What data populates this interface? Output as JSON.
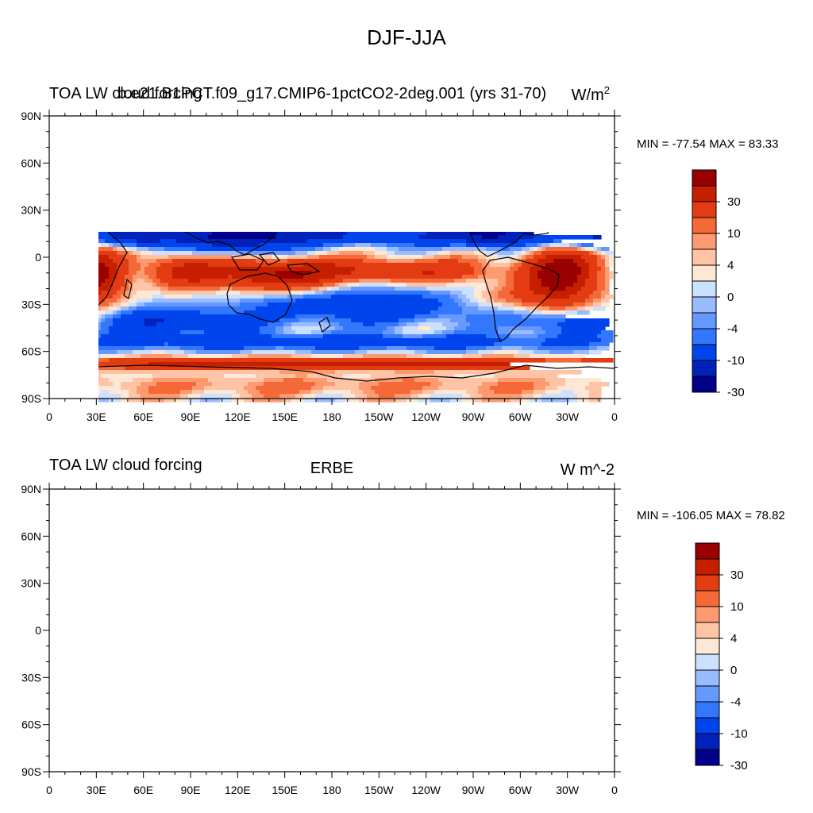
{
  "page": {
    "title": "DJF-JJA"
  },
  "colors": {
    "scale": [
      "#000088",
      "#0022bb",
      "#0044ee",
      "#3377ff",
      "#6699ff",
      "#99bbff",
      "#cce0ff",
      "#ffffff",
      "#fde8d6",
      "#ffc4a6",
      "#fd9a70",
      "#f56938",
      "#e33c12",
      "#c51f00",
      "#990000"
    ],
    "land_outline": "#000000",
    "missing": "#ffffff"
  },
  "axes": {
    "lat_labels": [
      "90N",
      "60N",
      "30N",
      "0",
      "30S",
      "60S",
      "90S"
    ],
    "lon_labels": [
      "0",
      "30E",
      "60E",
      "90E",
      "120E",
      "150E",
      "180",
      "150W",
      "120W",
      "90W",
      "60W",
      "30W",
      "0"
    ]
  },
  "panels": [
    {
      "left_title": "TOA LW cloud forcing",
      "center_title": "b.e21.B1PCT.f09_g17.CMIP6-1pctCO2-2deg.001 (yrs 31-70)",
      "units": "W/m",
      "units_sup": "2",
      "stats": "MIN = -77.54 MAX =  83.33",
      "colorbar_labels": [
        "30",
        "10",
        "4",
        "0",
        "-4",
        "-10",
        "-30"
      ],
      "has_missing_data": false
    },
    {
      "left_title": "TOA LW cloud forcing",
      "center_title": "ERBE",
      "units": "W m^-2",
      "units_sup": "",
      "stats": "MIN = -106.05 MAX =  78.82",
      "colorbar_labels": [
        "30",
        "10",
        "4",
        "0",
        "-4",
        "-10",
        "-30"
      ],
      "has_missing_data": true
    }
  ]
}
